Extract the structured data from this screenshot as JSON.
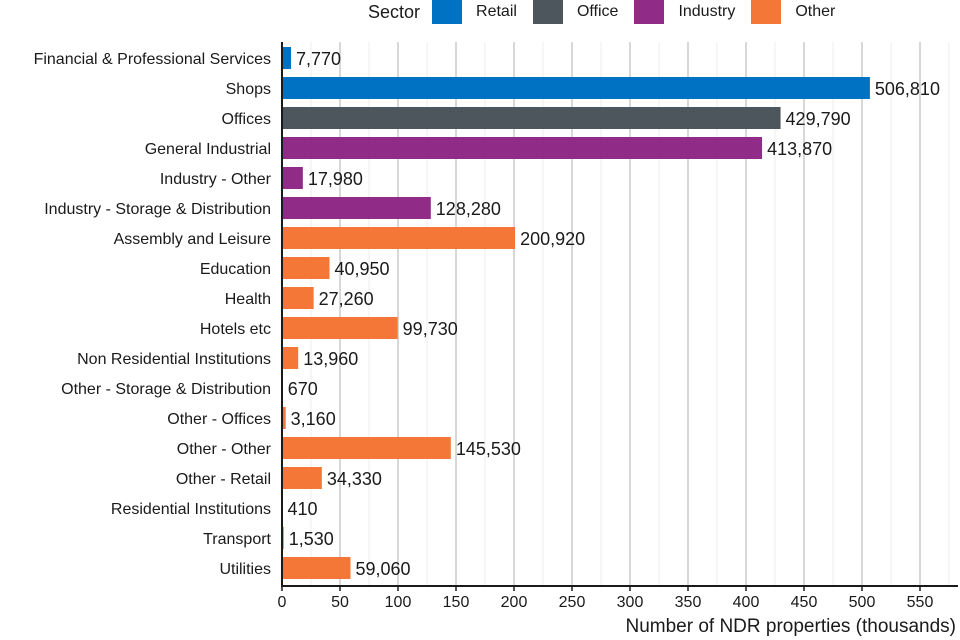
{
  "chart_data": {
    "type": "bar",
    "orientation": "horizontal",
    "title": "",
    "xlabel": "Number of NDR properties (thousands)",
    "ylabel": "",
    "xlim": [
      0,
      580
    ],
    "xticks": [
      0,
      50,
      100,
      150,
      200,
      250,
      300,
      350,
      400,
      450,
      500,
      550
    ],
    "grid": true,
    "legend": {
      "title": "Sector",
      "placement": "top-right",
      "entries": [
        {
          "name": "Retail",
          "color": "#0072c3"
        },
        {
          "name": "Office",
          "color": "#4d555d"
        },
        {
          "name": "Industry",
          "color": "#912b88"
        },
        {
          "name": "Other",
          "color": "#f47738"
        }
      ]
    },
    "categories": [
      "Financial & Professional Services",
      "Shops",
      "Offices",
      "General Industrial",
      "Industry - Other",
      "Industry - Storage & Distribution",
      "Assembly and Leisure",
      "Education",
      "Health",
      "Hotels etc",
      "Non Residential Institutions",
      "Other - Storage & Distribution",
      "Other - Offices",
      "Other - Other",
      "Other - Retail",
      "Residential Institutions",
      "Transport",
      "Utilities"
    ],
    "values": [
      7770,
      506810,
      429790,
      413870,
      17980,
      128280,
      200920,
      40950,
      27260,
      99730,
      13960,
      670,
      3160,
      145530,
      34330,
      410,
      1530,
      59060
    ],
    "value_labels": [
      "7,770",
      "506,810",
      "429,790",
      "413,870",
      "17,980",
      "128,280",
      "200,920",
      "40,950",
      "27,260",
      "99,730",
      "13,960",
      "670",
      "3,160",
      "145,530",
      "34,330",
      "410",
      "1,530",
      "59,060"
    ],
    "sectors": [
      "Retail",
      "Retail",
      "Office",
      "Industry",
      "Industry",
      "Industry",
      "Other",
      "Other",
      "Other",
      "Other",
      "Other",
      "Other",
      "Other",
      "Other",
      "Other",
      "Other",
      "Other",
      "Other"
    ]
  }
}
